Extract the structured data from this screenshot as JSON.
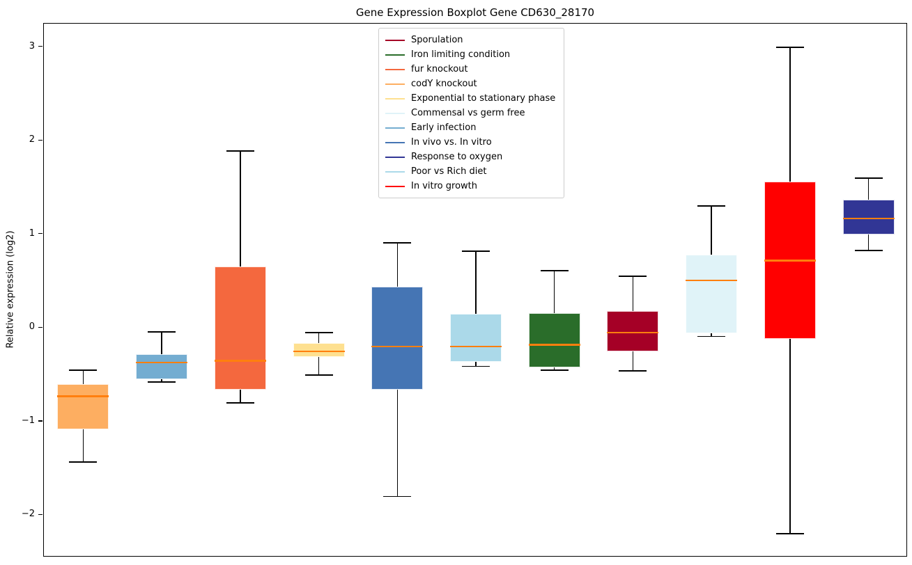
{
  "chart_data": {
    "type": "boxplot",
    "title": "Gene Expression Boxplot Gene CD630_28170",
    "xlabel": "",
    "ylabel": "Relative expression (log2)",
    "ylim": [
      -2.45,
      3.25
    ],
    "yticks": [
      {
        "value": 3,
        "label": "3"
      },
      {
        "value": 2,
        "label": "2"
      },
      {
        "value": 1,
        "label": "1"
      },
      {
        "value": 0,
        "label": "0"
      },
      {
        "value": -1,
        "label": "−1"
      },
      {
        "value": -2,
        "label": "−2"
      }
    ],
    "grid": false,
    "x_tick_labels": [],
    "median_color": "#ff7f0e",
    "whisker_color": "#000000",
    "legend": {
      "position": "top-center",
      "entries": [
        {
          "label": "Sporulation",
          "color": "#a50026"
        },
        {
          "label": "Iron limiting condition",
          "color": "#2a6d2a"
        },
        {
          "label": "fur knockout",
          "color": "#f4683e"
        },
        {
          "label": "codY knockout",
          "color": "#fdae61"
        },
        {
          "label": "Exponential to stationary phase",
          "color": "#fee090"
        },
        {
          "label": "Commensal vs germ free",
          "color": "#e0f3f8"
        },
        {
          "label": "Early infection",
          "color": "#74add1"
        },
        {
          "label": "In vivo vs. In vitro",
          "color": "#4575b4"
        },
        {
          "label": "Response to oxygen",
          "color": "#313695"
        },
        {
          "label": "Poor vs Rich diet",
          "color": "#abd9e9"
        },
        {
          "label": "In vitro growth",
          "color": "#ff0000"
        }
      ]
    },
    "series": [
      {
        "name": "codY knockout",
        "color": "#fdae61",
        "whisker_low": -1.43,
        "q1": -1.08,
        "median": -0.73,
        "q3": -0.6,
        "whisker_high": -0.45
      },
      {
        "name": "Early infection",
        "color": "#74add1",
        "whisker_low": -0.58,
        "q1": -0.55,
        "median": -0.37,
        "q3": -0.28,
        "whisker_high": -0.04
      },
      {
        "name": "fur knockout",
        "color": "#f4683e",
        "whisker_low": -0.8,
        "q1": -0.66,
        "median": -0.35,
        "q3": 0.66,
        "whisker_high": 1.89
      },
      {
        "name": "Exponential to stationary phase",
        "color": "#fee090",
        "whisker_low": -0.5,
        "q1": -0.31,
        "median": -0.25,
        "q3": -0.16,
        "whisker_high": -0.05
      },
      {
        "name": "In vivo vs. In vitro",
        "color": "#4575b4",
        "whisker_low": -1.8,
        "q1": -0.66,
        "median": -0.2,
        "q3": 0.44,
        "whisker_high": 0.91
      },
      {
        "name": "Poor vs Rich diet",
        "color": "#abd9e9",
        "whisker_low": -0.41,
        "q1": -0.36,
        "median": -0.2,
        "q3": 0.15,
        "whisker_high": 0.82
      },
      {
        "name": "Iron limiting condition",
        "color": "#2a6d2a",
        "whisker_low": -0.45,
        "q1": -0.42,
        "median": -0.18,
        "q3": 0.16,
        "whisker_high": 0.61
      },
      {
        "name": "Sporulation",
        "color": "#a50026",
        "whisker_low": -0.46,
        "q1": -0.25,
        "median": -0.05,
        "q3": 0.18,
        "whisker_high": 0.55
      },
      {
        "name": "Commensal vs germ free",
        "color": "#e0f3f8",
        "whisker_low": -0.09,
        "q1": -0.06,
        "median": 0.51,
        "q3": 0.78,
        "whisker_high": 1.3
      },
      {
        "name": "In vitro growth",
        "color": "#ff0000",
        "whisker_low": -2.2,
        "q1": -0.12,
        "median": 0.72,
        "q3": 1.56,
        "whisker_high": 3.0
      },
      {
        "name": "Response to oxygen",
        "color": "#313695",
        "whisker_low": 0.83,
        "q1": 1.0,
        "median": 1.17,
        "q3": 1.37,
        "whisker_high": 1.6
      }
    ]
  }
}
